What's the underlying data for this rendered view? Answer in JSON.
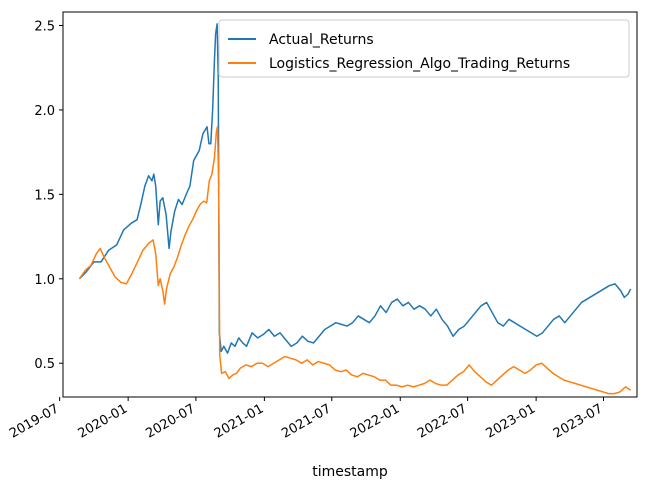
{
  "chart_data": {
    "type": "line",
    "xlabel": "timestamp",
    "ylabel": "",
    "title": "",
    "xlim": [
      "2019-07-10",
      "2023-09-29"
    ],
    "ylim": [
      0.3,
      2.58
    ],
    "x_ticks": [
      "2019-07",
      "2020-01",
      "2020-07",
      "2021-01",
      "2021-07",
      "2022-01",
      "2022-07",
      "2023-01",
      "2023-07"
    ],
    "y_ticks": [
      0.5,
      1.0,
      1.5,
      2.0,
      2.5
    ],
    "grid": false,
    "legend_position": "upper right",
    "series": [
      {
        "name": "Actual_Returns",
        "color": "#1f77b4",
        "points": [
          [
            "2019-08-23",
            1.0
          ],
          [
            "2019-09-10",
            1.04
          ],
          [
            "2019-10-01",
            1.1
          ],
          [
            "2019-10-20",
            1.1
          ],
          [
            "2019-11-10",
            1.17
          ],
          [
            "2019-12-01",
            1.2
          ],
          [
            "2019-12-20",
            1.29
          ],
          [
            "2020-01-10",
            1.33
          ],
          [
            "2020-01-25",
            1.35
          ],
          [
            "2020-02-05",
            1.45
          ],
          [
            "2020-02-15",
            1.55
          ],
          [
            "2020-02-25",
            1.61
          ],
          [
            "2020-03-05",
            1.58
          ],
          [
            "2020-03-10",
            1.62
          ],
          [
            "2020-03-15",
            1.55
          ],
          [
            "2020-03-22",
            1.32
          ],
          [
            "2020-03-27",
            1.46
          ],
          [
            "2020-04-03",
            1.48
          ],
          [
            "2020-04-12",
            1.38
          ],
          [
            "2020-04-20",
            1.18
          ],
          [
            "2020-04-25",
            1.28
          ],
          [
            "2020-05-05",
            1.4
          ],
          [
            "2020-05-15",
            1.47
          ],
          [
            "2020-05-25",
            1.44
          ],
          [
            "2020-06-05",
            1.5
          ],
          [
            "2020-06-15",
            1.55
          ],
          [
            "2020-06-25",
            1.7
          ],
          [
            "2020-07-10",
            1.76
          ],
          [
            "2020-07-20",
            1.86
          ],
          [
            "2020-07-31",
            1.9
          ],
          [
            "2020-08-05",
            1.8
          ],
          [
            "2020-08-10",
            1.8
          ],
          [
            "2020-08-15",
            2.0
          ],
          [
            "2020-08-20",
            2.3
          ],
          [
            "2020-08-23",
            2.45
          ],
          [
            "2020-08-27",
            2.51
          ],
          [
            "2020-08-30",
            2.2
          ],
          [
            "2020-09-02",
            0.68
          ],
          [
            "2020-09-07",
            0.57
          ],
          [
            "2020-09-14",
            0.6
          ],
          [
            "2020-09-24",
            0.56
          ],
          [
            "2020-10-04",
            0.62
          ],
          [
            "2020-10-14",
            0.6
          ],
          [
            "2020-10-24",
            0.65
          ],
          [
            "2020-11-04",
            0.62
          ],
          [
            "2020-11-14",
            0.6
          ],
          [
            "2020-11-29",
            0.68
          ],
          [
            "2020-12-14",
            0.65
          ],
          [
            "2020-12-29",
            0.67
          ],
          [
            "2021-01-13",
            0.7
          ],
          [
            "2021-01-28",
            0.66
          ],
          [
            "2021-02-12",
            0.68
          ],
          [
            "2021-02-27",
            0.64
          ],
          [
            "2021-03-14",
            0.6
          ],
          [
            "2021-03-29",
            0.62
          ],
          [
            "2021-04-13",
            0.66
          ],
          [
            "2021-04-28",
            0.63
          ],
          [
            "2021-05-13",
            0.62
          ],
          [
            "2021-05-28",
            0.66
          ],
          [
            "2021-06-12",
            0.7
          ],
          [
            "2021-06-27",
            0.72
          ],
          [
            "2021-07-12",
            0.74
          ],
          [
            "2021-07-27",
            0.73
          ],
          [
            "2021-08-11",
            0.72
          ],
          [
            "2021-08-26",
            0.74
          ],
          [
            "2021-09-10",
            0.78
          ],
          [
            "2021-09-25",
            0.76
          ],
          [
            "2021-10-10",
            0.74
          ],
          [
            "2021-10-25",
            0.78
          ],
          [
            "2021-11-09",
            0.84
          ],
          [
            "2021-11-24",
            0.8
          ],
          [
            "2021-12-09",
            0.86
          ],
          [
            "2021-12-24",
            0.88
          ],
          [
            "2022-01-08",
            0.84
          ],
          [
            "2022-01-23",
            0.86
          ],
          [
            "2022-02-07",
            0.82
          ],
          [
            "2022-02-22",
            0.84
          ],
          [
            "2022-03-09",
            0.82
          ],
          [
            "2022-03-24",
            0.78
          ],
          [
            "2022-04-08",
            0.82
          ],
          [
            "2022-04-23",
            0.76
          ],
          [
            "2022-05-08",
            0.72
          ],
          [
            "2022-05-23",
            0.66
          ],
          [
            "2022-06-07",
            0.7
          ],
          [
            "2022-06-22",
            0.72
          ],
          [
            "2022-07-07",
            0.76
          ],
          [
            "2022-07-22",
            0.8
          ],
          [
            "2022-08-06",
            0.84
          ],
          [
            "2022-08-21",
            0.86
          ],
          [
            "2022-09-05",
            0.8
          ],
          [
            "2022-09-20",
            0.74
          ],
          [
            "2022-10-05",
            0.72
          ],
          [
            "2022-10-20",
            0.76
          ],
          [
            "2022-11-04",
            0.74
          ],
          [
            "2022-11-19",
            0.72
          ],
          [
            "2022-12-04",
            0.7
          ],
          [
            "2022-12-19",
            0.68
          ],
          [
            "2023-01-03",
            0.66
          ],
          [
            "2023-01-18",
            0.68
          ],
          [
            "2023-02-02",
            0.72
          ],
          [
            "2023-02-17",
            0.76
          ],
          [
            "2023-03-04",
            0.78
          ],
          [
            "2023-03-19",
            0.74
          ],
          [
            "2023-04-03",
            0.78
          ],
          [
            "2023-04-18",
            0.82
          ],
          [
            "2023-05-03",
            0.86
          ],
          [
            "2023-05-18",
            0.88
          ],
          [
            "2023-06-02",
            0.9
          ],
          [
            "2023-06-17",
            0.92
          ],
          [
            "2023-07-02",
            0.94
          ],
          [
            "2023-07-17",
            0.96
          ],
          [
            "2023-08-01",
            0.97
          ],
          [
            "2023-08-16",
            0.93
          ],
          [
            "2023-08-26",
            0.89
          ],
          [
            "2023-09-05",
            0.91
          ],
          [
            "2023-09-12",
            0.94
          ]
        ]
      },
      {
        "name": "Logistics_Regression_Algo_Trading_Returns",
        "color": "#ff7f0e",
        "points": [
          [
            "2019-08-23",
            1.0
          ],
          [
            "2019-09-08",
            1.05
          ],
          [
            "2019-09-23",
            1.08
          ],
          [
            "2019-10-08",
            1.15
          ],
          [
            "2019-10-18",
            1.18
          ],
          [
            "2019-10-28",
            1.13
          ],
          [
            "2019-11-12",
            1.07
          ],
          [
            "2019-11-27",
            1.01
          ],
          [
            "2019-12-12",
            0.98
          ],
          [
            "2019-12-27",
            0.97
          ],
          [
            "2020-01-11",
            1.03
          ],
          [
            "2020-01-26",
            1.1
          ],
          [
            "2020-02-10",
            1.17
          ],
          [
            "2020-02-25",
            1.21
          ],
          [
            "2020-03-08",
            1.23
          ],
          [
            "2020-03-15",
            1.15
          ],
          [
            "2020-03-22",
            0.96
          ],
          [
            "2020-03-27",
            1.0
          ],
          [
            "2020-04-03",
            0.93
          ],
          [
            "2020-04-08",
            0.85
          ],
          [
            "2020-04-13",
            0.94
          ],
          [
            "2020-04-23",
            1.03
          ],
          [
            "2020-05-03",
            1.07
          ],
          [
            "2020-05-13",
            1.13
          ],
          [
            "2020-05-23",
            1.2
          ],
          [
            "2020-06-02",
            1.26
          ],
          [
            "2020-06-12",
            1.31
          ],
          [
            "2020-06-22",
            1.35
          ],
          [
            "2020-07-02",
            1.4
          ],
          [
            "2020-07-12",
            1.44
          ],
          [
            "2020-07-22",
            1.46
          ],
          [
            "2020-07-30",
            1.45
          ],
          [
            "2020-08-06",
            1.58
          ],
          [
            "2020-08-13",
            1.62
          ],
          [
            "2020-08-20",
            1.72
          ],
          [
            "2020-08-25",
            1.87
          ],
          [
            "2020-08-28",
            1.9
          ],
          [
            "2020-08-31",
            1.6
          ],
          [
            "2020-09-03",
            0.55
          ],
          [
            "2020-09-08",
            0.44
          ],
          [
            "2020-09-18",
            0.45
          ],
          [
            "2020-09-28",
            0.41
          ],
          [
            "2020-10-08",
            0.43
          ],
          [
            "2020-10-18",
            0.44
          ],
          [
            "2020-10-28",
            0.47
          ],
          [
            "2020-11-12",
            0.49
          ],
          [
            "2020-11-27",
            0.48
          ],
          [
            "2020-12-12",
            0.5
          ],
          [
            "2020-12-27",
            0.5
          ],
          [
            "2021-01-11",
            0.48
          ],
          [
            "2021-01-26",
            0.5
          ],
          [
            "2021-02-10",
            0.52
          ],
          [
            "2021-02-25",
            0.54
          ],
          [
            "2021-03-12",
            0.53
          ],
          [
            "2021-03-27",
            0.52
          ],
          [
            "2021-04-11",
            0.5
          ],
          [
            "2021-04-26",
            0.52
          ],
          [
            "2021-05-11",
            0.49
          ],
          [
            "2021-05-26",
            0.51
          ],
          [
            "2021-06-10",
            0.5
          ],
          [
            "2021-06-25",
            0.49
          ],
          [
            "2021-07-10",
            0.46
          ],
          [
            "2021-07-25",
            0.45
          ],
          [
            "2021-08-09",
            0.46
          ],
          [
            "2021-08-24",
            0.43
          ],
          [
            "2021-09-08",
            0.42
          ],
          [
            "2021-09-23",
            0.44
          ],
          [
            "2021-10-08",
            0.43
          ],
          [
            "2021-10-23",
            0.42
          ],
          [
            "2021-11-07",
            0.4
          ],
          [
            "2021-11-22",
            0.4
          ],
          [
            "2021-12-07",
            0.37
          ],
          [
            "2021-12-22",
            0.37
          ],
          [
            "2022-01-06",
            0.36
          ],
          [
            "2022-01-21",
            0.37
          ],
          [
            "2022-02-05",
            0.36
          ],
          [
            "2022-02-20",
            0.37
          ],
          [
            "2022-03-07",
            0.38
          ],
          [
            "2022-03-22",
            0.4
          ],
          [
            "2022-04-06",
            0.38
          ],
          [
            "2022-04-21",
            0.37
          ],
          [
            "2022-05-06",
            0.37
          ],
          [
            "2022-05-21",
            0.4
          ],
          [
            "2022-06-05",
            0.43
          ],
          [
            "2022-06-20",
            0.45
          ],
          [
            "2022-07-05",
            0.49
          ],
          [
            "2022-07-20",
            0.45
          ],
          [
            "2022-08-04",
            0.42
          ],
          [
            "2022-08-19",
            0.39
          ],
          [
            "2022-09-03",
            0.37
          ],
          [
            "2022-09-18",
            0.4
          ],
          [
            "2022-10-03",
            0.43
          ],
          [
            "2022-10-18",
            0.46
          ],
          [
            "2022-11-02",
            0.48
          ],
          [
            "2022-11-17",
            0.46
          ],
          [
            "2022-12-02",
            0.44
          ],
          [
            "2022-12-17",
            0.46
          ],
          [
            "2023-01-01",
            0.49
          ],
          [
            "2023-01-16",
            0.5
          ],
          [
            "2023-01-31",
            0.47
          ],
          [
            "2023-02-15",
            0.44
          ],
          [
            "2023-03-02",
            0.42
          ],
          [
            "2023-03-17",
            0.4
          ],
          [
            "2023-04-01",
            0.39
          ],
          [
            "2023-04-16",
            0.38
          ],
          [
            "2023-05-01",
            0.37
          ],
          [
            "2023-05-16",
            0.36
          ],
          [
            "2023-05-31",
            0.35
          ],
          [
            "2023-06-15",
            0.34
          ],
          [
            "2023-06-30",
            0.33
          ],
          [
            "2023-07-15",
            0.32
          ],
          [
            "2023-07-30",
            0.32
          ],
          [
            "2023-08-14",
            0.33
          ],
          [
            "2023-08-29",
            0.36
          ],
          [
            "2023-09-12",
            0.34
          ]
        ]
      }
    ]
  }
}
